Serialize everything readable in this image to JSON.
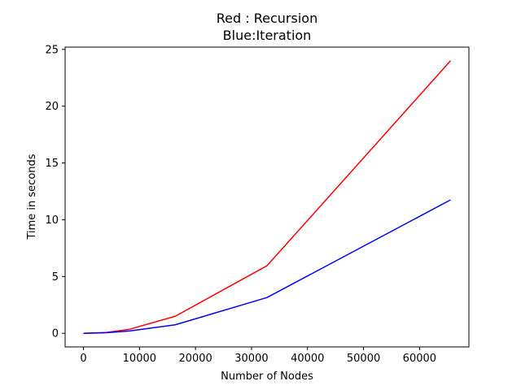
{
  "chart_data": {
    "type": "line",
    "title_line1": "Red : Recursion",
    "title_line2": "Blue:Iteration",
    "xlabel": "Number of Nodes",
    "ylabel": "Time in seconds",
    "xlim": [
      -3277,
      68813
    ],
    "ylim": [
      -1.2,
      25.2
    ],
    "xticks": [
      0,
      10000,
      20000,
      30000,
      40000,
      50000,
      60000
    ],
    "yticks": [
      0,
      5,
      10,
      15,
      20,
      25
    ],
    "grid": false,
    "series": [
      {
        "color": "#ff0000",
        "x": [
          0,
          4096,
          8192,
          16384,
          32768,
          65536
        ],
        "y": [
          0.0,
          0.08,
          0.35,
          1.5,
          5.95,
          24.0
        ]
      },
      {
        "color": "#0000ff",
        "x": [
          0,
          4096,
          8192,
          16384,
          32768,
          65536
        ],
        "y": [
          0.0,
          0.05,
          0.2,
          0.75,
          3.15,
          11.75
        ]
      }
    ]
  }
}
